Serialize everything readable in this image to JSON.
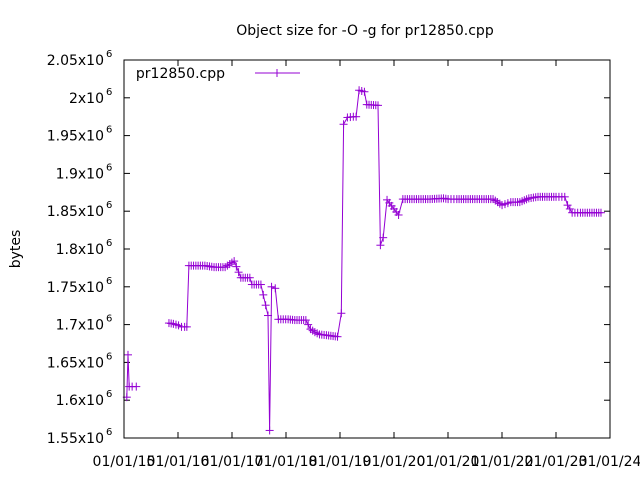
{
  "chart_data": {
    "type": "line",
    "title": "Object size for -O -g for pr12850.cpp",
    "ylabel": "bytes",
    "xlabel": "",
    "xlim": [
      "2015-01-01",
      "2024-01-01"
    ],
    "ylim": [
      1550000,
      2050000
    ],
    "x_ticks": [
      "01/01/15",
      "01/01/16",
      "01/01/17",
      "01/01/18",
      "01/01/19",
      "01/01/20",
      "01/01/21",
      "01/01/22",
      "01/01/23",
      "01/01/24"
    ],
    "y_ticks": [
      {
        "value": 1550000,
        "mantissa": "1.55x10",
        "exp": "6"
      },
      {
        "value": 1600000,
        "mantissa": "1.6x10",
        "exp": "6"
      },
      {
        "value": 1650000,
        "mantissa": "1.65x10",
        "exp": "6"
      },
      {
        "value": 1700000,
        "mantissa": "1.7x10",
        "exp": "6"
      },
      {
        "value": 1750000,
        "mantissa": "1.75x10",
        "exp": "6"
      },
      {
        "value": 1800000,
        "mantissa": "1.8x10",
        "exp": "6"
      },
      {
        "value": 1850000,
        "mantissa": "1.85x10",
        "exp": "6"
      },
      {
        "value": 1900000,
        "mantissa": "1.9x10",
        "exp": "6"
      },
      {
        "value": 1950000,
        "mantissa": "1.95x10",
        "exp": "6"
      },
      {
        "value": 2000000,
        "mantissa": "2x10",
        "exp": "6"
      },
      {
        "value": 2050000,
        "mantissa": "2.05x10",
        "exp": "6"
      }
    ],
    "legend_position": "top-left",
    "color": "#9400d3",
    "series": [
      {
        "name": "pr12850.cpp",
        "segments": [
          [
            [
              "2015-01-20",
              1604000
            ],
            [
              "2015-01-28",
              1660000
            ],
            [
              "2015-02-05",
              1618000
            ],
            [
              "2015-02-25",
              1618000
            ],
            [
              "2015-03-25",
              1618000
            ]
          ],
          [
            [
              "2015-11-01",
              1702000
            ],
            [
              "2015-12-01",
              1701000
            ],
            [
              "2016-01-05",
              1699000
            ],
            [
              "2016-01-25",
              1697000
            ],
            [
              "2016-02-15",
              1697000
            ],
            [
              "2016-03-01",
              1697000
            ],
            [
              "2016-03-15",
              1778000
            ],
            [
              "2016-05-01",
              1778000
            ],
            [
              "2016-07-01",
              1778000
            ],
            [
              "2016-09-01",
              1776000
            ],
            [
              "2016-11-15",
              1776000
            ],
            [
              "2017-01-15",
              1784000
            ],
            [
              "2017-03-01",
              1762000
            ],
            [
              "2017-05-01",
              1762000
            ],
            [
              "2017-05-15",
              1753000
            ],
            [
              "2017-07-15",
              1753000
            ],
            [
              "2017-09-01",
              1712000
            ],
            [
              "2017-09-12",
              1560000
            ],
            [
              "2017-09-25",
              1750000
            ],
            [
              "2017-10-20",
              1748000
            ],
            [
              "2017-11-10",
              1707000
            ],
            [
              "2018-01-15",
              1707000
            ],
            [
              "2018-03-01",
              1706000
            ],
            [
              "2018-05-15",
              1706000
            ],
            [
              "2018-06-15",
              1694000
            ],
            [
              "2018-07-15",
              1690000
            ],
            [
              "2018-08-15",
              1687000
            ],
            [
              "2018-10-01",
              1686000
            ],
            [
              "2018-12-15",
              1684000
            ],
            [
              "2019-01-10",
              1715000
            ],
            [
              "2019-01-25",
              1965000
            ],
            [
              "2019-02-20",
              1974000
            ],
            [
              "2019-04-01",
              1975000
            ],
            [
              "2019-04-20",
              1975000
            ],
            [
              "2019-05-10",
              2010000
            ],
            [
              "2019-06-15",
              2008000
            ],
            [
              "2019-07-01",
              1991000
            ],
            [
              "2019-09-15",
              1990000
            ],
            [
              "2019-10-01",
              1805000
            ],
            [
              "2019-10-20",
              1815000
            ],
            [
              "2019-11-15",
              1865000
            ],
            [
              "2020-02-01",
              1845000
            ],
            [
              "2020-03-01",
              1866000
            ],
            [
              "2020-06-01",
              1866000
            ],
            [
              "2020-09-01",
              1866000
            ],
            [
              "2020-12-01",
              1867000
            ],
            [
              "2021-01-01",
              1866000
            ],
            [
              "2021-03-01",
              1866000
            ],
            [
              "2021-05-01",
              1866000
            ],
            [
              "2021-07-01",
              1866000
            ],
            [
              "2021-09-01",
              1866000
            ],
            [
              "2021-11-01",
              1866000
            ],
            [
              "2022-01-01",
              1858000
            ],
            [
              "2022-03-01",
              1862000
            ],
            [
              "2022-05-01",
              1862000
            ],
            [
              "2022-07-01",
              1867000
            ],
            [
              "2022-09-01",
              1869000
            ],
            [
              "2022-11-01",
              1869000
            ],
            [
              "2023-01-01",
              1869000
            ],
            [
              "2023-03-01",
              1869000
            ],
            [
              "2023-03-20",
              1858000
            ],
            [
              "2023-04-20",
              1848000
            ],
            [
              "2023-06-15",
              1848000
            ],
            [
              "2023-08-01",
              1848000
            ],
            [
              "2023-09-01",
              1848000
            ],
            [
              "2023-11-01",
              1848000
            ]
          ]
        ]
      }
    ]
  }
}
